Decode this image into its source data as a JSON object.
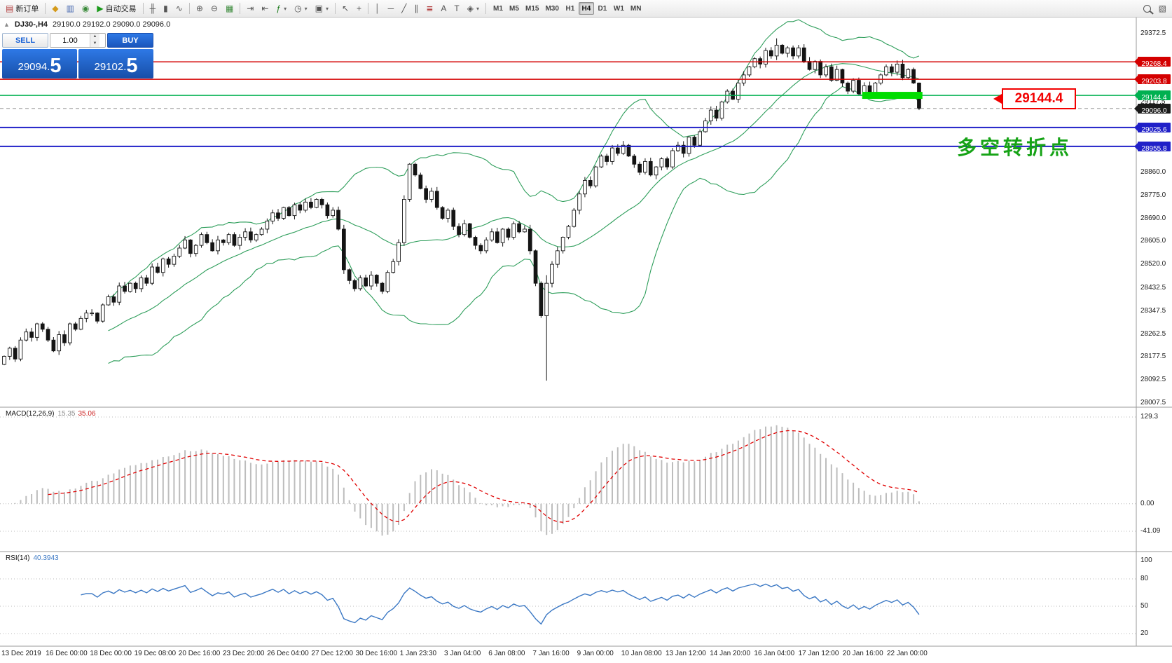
{
  "toolbar": {
    "items": [
      {
        "name": "new-order-button",
        "glyph": "▤",
        "glyph_color": "#b23b3b",
        "label": "新订单"
      },
      {
        "type": "sep"
      },
      {
        "name": "market-watch-button",
        "glyph": "◆",
        "glyph_color": "#d49a1a"
      },
      {
        "name": "data-window-button",
        "glyph": "▥",
        "glyph_color": "#4668b0"
      },
      {
        "name": "navigator-button",
        "glyph": "◉",
        "glyph_color": "#3a8a3a"
      },
      {
        "name": "auto-trading-button",
        "glyph": "▶",
        "glyph_color": "#1a9a1a",
        "label": "自动交易"
      },
      {
        "type": "sep"
      },
      {
        "name": "bar-chart-button",
        "glyph": "╫"
      },
      {
        "name": "candlestick-chart-button",
        "glyph": "▮"
      },
      {
        "name": "line-chart-button",
        "glyph": "∿"
      },
      {
        "type": "sep"
      },
      {
        "name": "zoom-in-button",
        "glyph": "⊕"
      },
      {
        "name": "zoom-out-button",
        "glyph": "⊖"
      },
      {
        "name": "tile-windows-button",
        "glyph": "▦",
        "glyph_color": "#3a8a3a"
      },
      {
        "type": "sep"
      },
      {
        "name": "auto-scroll-button",
        "glyph": "⇥"
      },
      {
        "name": "chart-shift-button",
        "glyph": "⇤"
      },
      {
        "name": "indicators-button",
        "glyph": "ƒ",
        "glyph_color": "#1a7a1a",
        "dropdown": true
      },
      {
        "name": "periods-button",
        "glyph": "◷",
        "dropdown": true
      },
      {
        "name": "templates-button",
        "glyph": "▣",
        "dropdown": true
      },
      {
        "type": "sep"
      },
      {
        "name": "cursor-button",
        "glyph": "↖"
      },
      {
        "name": "crosshair-button",
        "glyph": "+"
      },
      {
        "type": "sep"
      },
      {
        "name": "vertical-line-button",
        "glyph": "│"
      },
      {
        "name": "horizontal-line-button",
        "glyph": "─"
      },
      {
        "name": "trendline-button",
        "glyph": "╱"
      },
      {
        "name": "channel-button",
        "glyph": "∥"
      },
      {
        "name": "fibonacci-button",
        "glyph": "≣",
        "glyph_color": "#b23b3b"
      },
      {
        "name": "text-button",
        "glyph": "A"
      },
      {
        "name": "label-button",
        "glyph": "T"
      },
      {
        "name": "shapes-button",
        "glyph": "◈",
        "dropdown": true
      },
      {
        "type": "sep"
      },
      {
        "type": "timeframes"
      },
      {
        "type": "spacer"
      },
      {
        "name": "search-button",
        "css_icon": "magnifier"
      },
      {
        "name": "profiles-button",
        "glyph": "▧"
      }
    ],
    "timeframes": [
      "M1",
      "M5",
      "M15",
      "M30",
      "H1",
      "H4",
      "D1",
      "W1",
      "MN"
    ],
    "active_timeframe": "H4"
  },
  "chart_header": {
    "collapse_glyph": "▲",
    "symbol_period": "DJ30-,H4",
    "ohlc": "29190.0 29192.0 29090.0 29096.0"
  },
  "trade_panel": {
    "sell_label": "SELL",
    "buy_label": "BUY",
    "volume": "1.00",
    "volume_up_glyph": "▲",
    "volume_down_glyph": "▼",
    "sell_price": "29094.5",
    "buy_price": "29102.5"
  },
  "annotations": {
    "price_callout": "29144.4",
    "note_text": "多空转折点"
  },
  "indicators": {
    "macd": {
      "label": "MACD(12,26,9)",
      "value_main": "15.35",
      "value_signal": "35.06",
      "axis": [
        {
          "text": "129.3",
          "value": 129.3
        },
        {
          "text": "0.00",
          "value": 0
        },
        {
          "text": "-41.09",
          "value": -41.09
        }
      ]
    },
    "rsi": {
      "label": "RSI(14)",
      "value": "40.3943",
      "axis": [
        {
          "text": "100",
          "value": 100
        },
        {
          "text": "80",
          "value": 80
        },
        {
          "text": "50",
          "value": 50
        },
        {
          "text": "20",
          "value": 20
        }
      ],
      "grid_levels": [
        80,
        50,
        20
      ]
    }
  },
  "chart_data": {
    "type": "candlestick",
    "symbol": "DJ30-",
    "period": "H4",
    "price_axis": {
      "min": 28007.5,
      "max": 29372.5,
      "ticks": [
        29372.5,
        29117.5,
        28860.0,
        28775.0,
        28690.0,
        28605.0,
        28520.0,
        28432.5,
        28347.5,
        28262.5,
        28177.5,
        28092.5,
        28007.5
      ]
    },
    "time_labels": [
      "13 Dec 2019",
      "16 Dec 00:00",
      "18 Dec 00:00",
      "19 Dec 08:00",
      "20 Dec 16:00",
      "23 Dec 20:00",
      "26 Dec 04:00",
      "27 Dec 12:00",
      "30 Dec 16:00",
      "1 Jan 23:30",
      "3 Jan 04:00",
      "6 Jan 08:00",
      "7 Jan 16:00",
      "9 Jan 00:00",
      "10 Jan 08:00",
      "13 Jan 12:00",
      "14 Jan 20:00",
      "16 Jan 04:00",
      "17 Jan 12:00",
      "20 Jan 16:00",
      "22 Jan 00:00"
    ],
    "first_open": 28150,
    "closes": [
      28180,
      28210,
      28170,
      28240,
      28270,
      28250,
      28300,
      28280,
      28240,
      28200,
      28260,
      28230,
      28300,
      28280,
      28320,
      28340,
      28340,
      28310,
      28370,
      28400,
      28380,
      28440,
      28420,
      28450,
      28430,
      28470,
      28450,
      28510,
      28490,
      28540,
      28520,
      28550,
      28580,
      28610,
      28560,
      28590,
      28630,
      28600,
      28570,
      28610,
      28600,
      28630,
      28590,
      28620,
      28640,
      28610,
      28630,
      28650,
      28680,
      28710,
      28690,
      28730,
      28700,
      28740,
      28720,
      28750,
      28730,
      28760,
      28740,
      28700,
      28720,
      28650,
      28500,
      28460,
      28430,
      28470,
      28440,
      28480,
      28450,
      28420,
      28490,
      28530,
      28600,
      28760,
      28890,
      28850,
      28800,
      28760,
      28790,
      28730,
      28690,
      28720,
      28660,
      28630,
      28670,
      28620,
      28590,
      28570,
      28610,
      28640,
      28600,
      28650,
      28620,
      28670,
      28640,
      28650,
      28570,
      28450,
      28330,
      28450,
      28520,
      28570,
      28620,
      28660,
      28720,
      28780,
      28830,
      28810,
      28880,
      28920,
      28900,
      28950,
      28930,
      28960,
      28920,
      28890,
      28860,
      28900,
      28850,
      28880,
      28910,
      28880,
      28940,
      28960,
      28930,
      28990,
      28960,
      29010,
      29050,
      29090,
      29060,
      29120,
      29160,
      29130,
      29190,
      29220,
      29250,
      29280,
      29260,
      29310,
      29290,
      29330,
      29300,
      29320,
      29290,
      29320,
      29270,
      29240,
      29270,
      29220,
      29250,
      29200,
      29240,
      29190,
      29160,
      29200,
      29150,
      29180,
      29150,
      29190,
      29220,
      29250,
      29230,
      29260,
      29210,
      29240,
      29190,
      29096
    ],
    "candle_overrides": {
      "99": [
        28330,
        28480,
        28090,
        28450
      ],
      "141": [
        29290,
        29355,
        29275,
        29330
      ],
      "167": [
        29190,
        29192,
        29090,
        29096
      ]
    },
    "hlines": [
      {
        "price": 29268.4,
        "color": "#d40000",
        "width": 1.5,
        "style": "solid",
        "tag_bg": "#d40000"
      },
      {
        "price": 29203.8,
        "color": "#d40000",
        "width": 1.5,
        "style": "solid",
        "tag_bg": "#d40000"
      },
      {
        "price": 29144.4,
        "color": "#00b050",
        "width": 1.5,
        "style": "solid",
        "tag_bg": "#00b050"
      },
      {
        "price": 29096.0,
        "color": "#999999",
        "width": 1,
        "style": "dash",
        "tag_bg": "#1a1a1a"
      },
      {
        "price": 29025.6,
        "color": "#2020c8",
        "width": 2,
        "style": "solid",
        "tag_bg": "#2020c8"
      },
      {
        "price": 28955.8,
        "color": "#2020c8",
        "width": 2,
        "style": "solid",
        "tag_bg": "#2020c8"
      }
    ],
    "highlight_rect": {
      "price": 29144.4,
      "start_index": 157,
      "end_index": 168,
      "color": "#00dd00"
    },
    "bollinger": {
      "period": 20,
      "deviation": 2,
      "color": "#2e9e5b"
    },
    "macd_settings": {
      "fast": 12,
      "slow": 26,
      "signal": 9,
      "hist_color": "#bdbdbd",
      "signal_color": "#e00000",
      "range": [
        -41.09,
        129.3
      ]
    },
    "rsi_settings": {
      "period": 14,
      "color": "#3b78c4",
      "range": [
        0,
        100
      ]
    }
  }
}
